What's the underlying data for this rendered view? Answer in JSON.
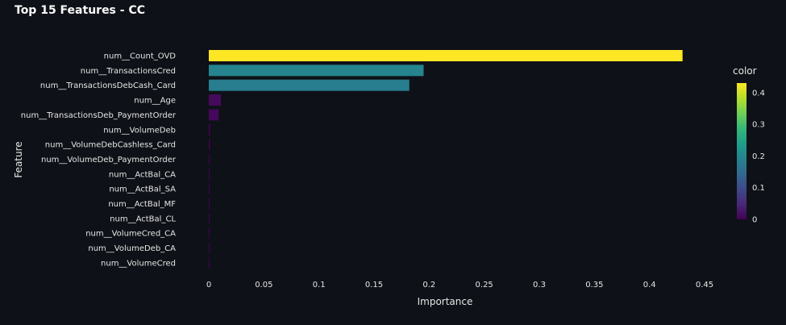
{
  "chart_data": {
    "type": "bar",
    "orientation": "horizontal",
    "title": "Top 15 Features - CC",
    "xlabel": "Importance",
    "ylabel": "Feature",
    "xlim": [
      0,
      0.45
    ],
    "xticks": [
      0,
      0.05,
      0.1,
      0.15,
      0.2,
      0.25,
      0.3,
      0.35,
      0.4,
      0.45
    ],
    "xtick_labels": [
      "0",
      "0.05",
      "0.1",
      "0.15",
      "0.2",
      "0.25",
      "0.3",
      "0.35",
      "0.4",
      "0.45"
    ],
    "grid": false,
    "categories": [
      "num__Count_OVD",
      "num__TransactionsCred",
      "num__TransactionsDebCash_Card",
      "num__Age",
      "num__TransactionsDeb_PaymentOrder",
      "num__VolumeDeb",
      "num__VolumeDebCashless_Card",
      "num__VolumeDeb_PaymentOrder",
      "num__ActBal_CA",
      "num__ActBal_SA",
      "num__ActBal_MF",
      "num__ActBal_CL",
      "num__VolumeCred_CA",
      "num__VolumeDeb_CA",
      "num__VolumeCred"
    ],
    "values": [
      0.43,
      0.195,
      0.182,
      0.011,
      0.009,
      0.0012,
      0.001,
      0.0006,
      0.0005,
      0.0005,
      0.0003,
      0.0004,
      0.0004,
      0.0003,
      0.0003
    ],
    "colorbar": {
      "title": "color",
      "range": [
        0,
        0.43
      ],
      "ticks": [
        0,
        0.1,
        0.2,
        0.3,
        0.4
      ],
      "tick_labels": [
        "0",
        "0.1",
        "0.2",
        "0.3",
        "0.4"
      ],
      "colorscale": [
        "#440154",
        "#482878",
        "#3e4989",
        "#31688e",
        "#26828e",
        "#1f9e89",
        "#35b779",
        "#6ece58",
        "#b5de2b",
        "#fde725"
      ]
    },
    "background_color": "#0e1117"
  }
}
